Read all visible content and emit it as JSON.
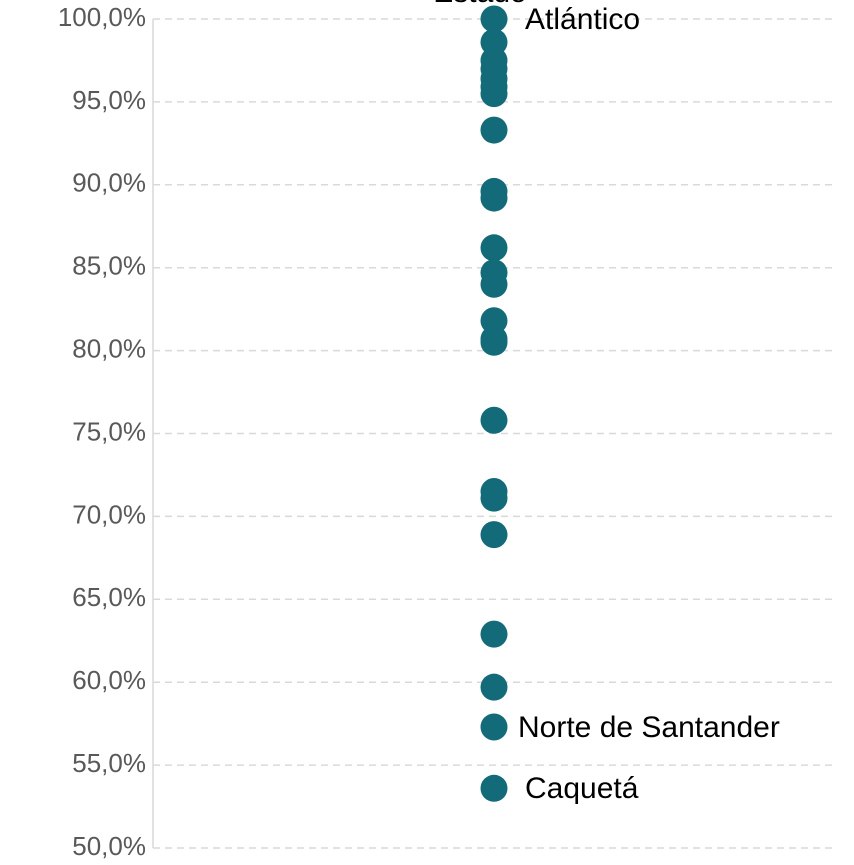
{
  "chart_data": {
    "type": "strip",
    "title": "Estado",
    "values": [
      100.0,
      98.6,
      97.5,
      97.0,
      96.4,
      95.9,
      95.5,
      93.3,
      89.6,
      89.2,
      86.2,
      84.7,
      84.0,
      81.8,
      80.7,
      80.5,
      75.8,
      71.5,
      71.1,
      68.9,
      62.9,
      59.7,
      57.3,
      53.6
    ],
    "labels": [
      "Atlántico",
      null,
      null,
      null,
      null,
      null,
      null,
      null,
      null,
      null,
      null,
      null,
      null,
      null,
      null,
      null,
      null,
      null,
      null,
      null,
      null,
      null,
      "Norte de Santander",
      "Caquetá"
    ],
    "color": "#136a78",
    "ylim": [
      50,
      100
    ],
    "yticks": [
      {
        "value": 50,
        "label": "50,0%"
      },
      {
        "value": 55,
        "label": "55,0%"
      },
      {
        "value": 60,
        "label": "60,0%"
      },
      {
        "value": 65,
        "label": "65,0%"
      },
      {
        "value": 70,
        "label": "70,0%"
      },
      {
        "value": 75,
        "label": "75,0%"
      },
      {
        "value": 80,
        "label": "80,0%"
      },
      {
        "value": 85,
        "label": "85,0%"
      },
      {
        "value": 90,
        "label": "90,0%"
      },
      {
        "value": 95,
        "label": "95,0%"
      },
      {
        "value": 100,
        "label": "100,0%"
      }
    ],
    "grid": true
  }
}
